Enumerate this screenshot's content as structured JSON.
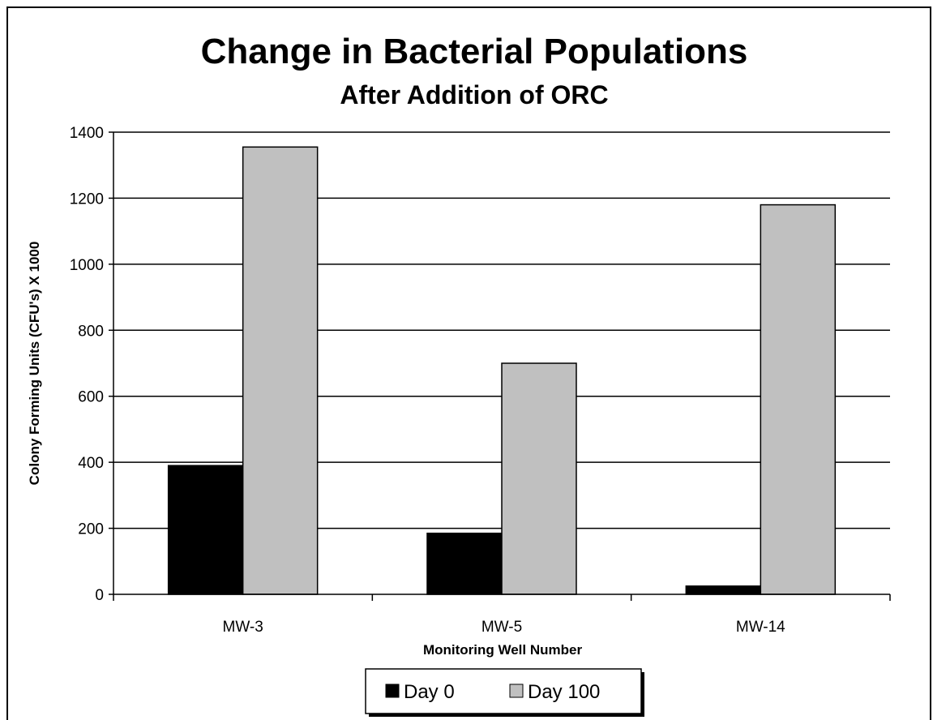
{
  "chart_data": {
    "type": "bar",
    "title": "Change in Bacterial Populations",
    "subtitle": "After Addition of ORC",
    "xlabel": "Monitoring Well Number",
    "ylabel": "Colony Forming Units (CFU's) X 1000",
    "categories": [
      "MW-3",
      "MW-5",
      "MW-14"
    ],
    "series": [
      {
        "name": "Day 0",
        "values": [
          390,
          185,
          25
        ],
        "color": "#000000"
      },
      {
        "name": "Day 100",
        "values": [
          1355,
          700,
          1180
        ],
        "color": "#c0c0c0"
      }
    ],
    "ylim": [
      0,
      1400
    ],
    "yticks": [
      0,
      200,
      400,
      600,
      800,
      1000,
      1200,
      1400
    ],
    "grid": true,
    "legend_position": "bottom"
  }
}
